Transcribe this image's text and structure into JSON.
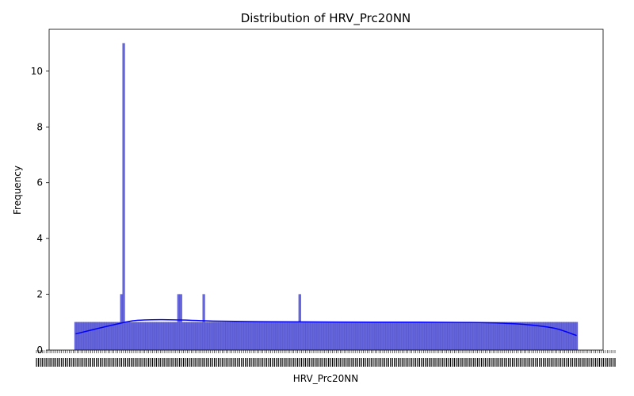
{
  "chart_data": {
    "type": "bar",
    "title": "Distribution of HRV_Prc20NN",
    "xlabel": "HRV_Prc20NN",
    "ylabel": "Frequency",
    "ylim": [
      0,
      11.5
    ],
    "yticks": [
      0,
      2,
      4,
      6,
      8,
      10
    ],
    "bin_count": 220,
    "base_frequency": 1,
    "peaks": [
      {
        "bin": 20,
        "value": 2
      },
      {
        "bin": 21,
        "value": 11
      },
      {
        "bin": 45,
        "value": 2
      },
      {
        "bin": 46,
        "value": 2
      },
      {
        "bin": 56,
        "value": 2
      },
      {
        "bin": 98,
        "value": 2
      }
    ],
    "kde": [
      [
        0,
        0.58
      ],
      [
        10,
        0.78
      ],
      [
        20,
        0.97
      ],
      [
        25,
        1.05
      ],
      [
        30,
        1.08
      ],
      [
        38,
        1.09
      ],
      [
        50,
        1.07
      ],
      [
        60,
        1.04
      ],
      [
        80,
        1.02
      ],
      [
        100,
        1.01
      ],
      [
        130,
        1.0
      ],
      [
        150,
        1.0
      ],
      [
        170,
        0.99
      ],
      [
        180,
        0.98
      ],
      [
        190,
        0.95
      ],
      [
        200,
        0.89
      ],
      [
        210,
        0.77
      ],
      [
        219,
        0.52
      ]
    ],
    "x_category_count": 300,
    "colors": {
      "bar_fill": "#6464dc",
      "bar_edge": "#4a4ab4",
      "kde": "#0000ff"
    },
    "grid": false,
    "legend": "none"
  }
}
